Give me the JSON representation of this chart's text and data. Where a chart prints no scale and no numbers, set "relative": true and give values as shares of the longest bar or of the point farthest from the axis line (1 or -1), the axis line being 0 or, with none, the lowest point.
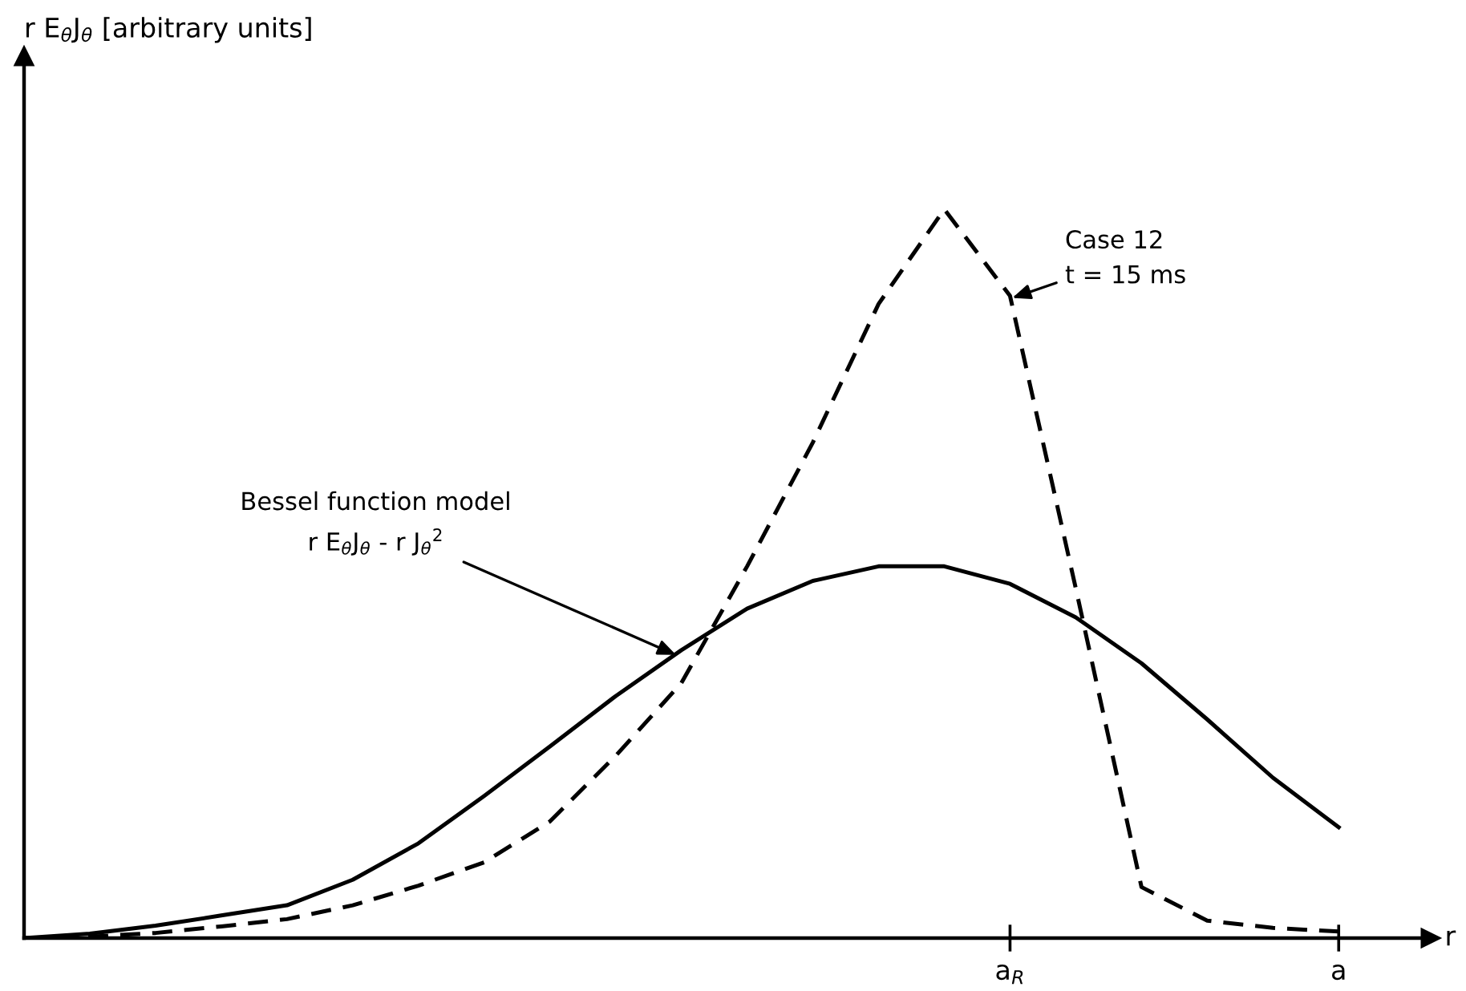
{
  "chart_data": {
    "type": "line",
    "relative": true,
    "xlabel": "r",
    "categories": [
      null,
      null,
      null,
      null,
      null,
      null,
      null,
      null,
      null,
      null,
      null,
      null,
      null,
      null,
      null,
      "a$_{R}$",
      null,
      null,
      null,
      null,
      "a"
    ],
    "grid": false,
    "marker": "none",
    "series": [
      {
        "color": "#000000",
        "line_style": "solid",
        "values": [
          0,
          0.006,
          0.017,
          0.031,
          0.045,
          0.08,
          0.13,
          0.195,
          0.263,
          0.332,
          0.395,
          0.452,
          0.49,
          0.51,
          0.51,
          0.486,
          0.44,
          0.377,
          0.3,
          0.22,
          0.152
        ]
      },
      {
        "color": "#000000",
        "line_style": "dashed",
        "values": [
          0,
          0.002,
          0.007,
          0.016,
          0.026,
          0.045,
          0.072,
          0.104,
          0.16,
          0.25,
          0.35,
          0.51,
          0.68,
          0.87,
          1.0,
          0.881,
          0.48,
          0.07,
          0.024,
          0.014,
          0.009
        ]
      }
    ],
    "annotations": [
      "r E$_{θ}$J$_{θ}$ [arbitrary units]",
      "Bessel function model\nr E$_{θ}$J$_{θ}$ - r J$_{θ}$$^{2}$",
      "Case 12\nt = 15 ms"
    ]
  }
}
